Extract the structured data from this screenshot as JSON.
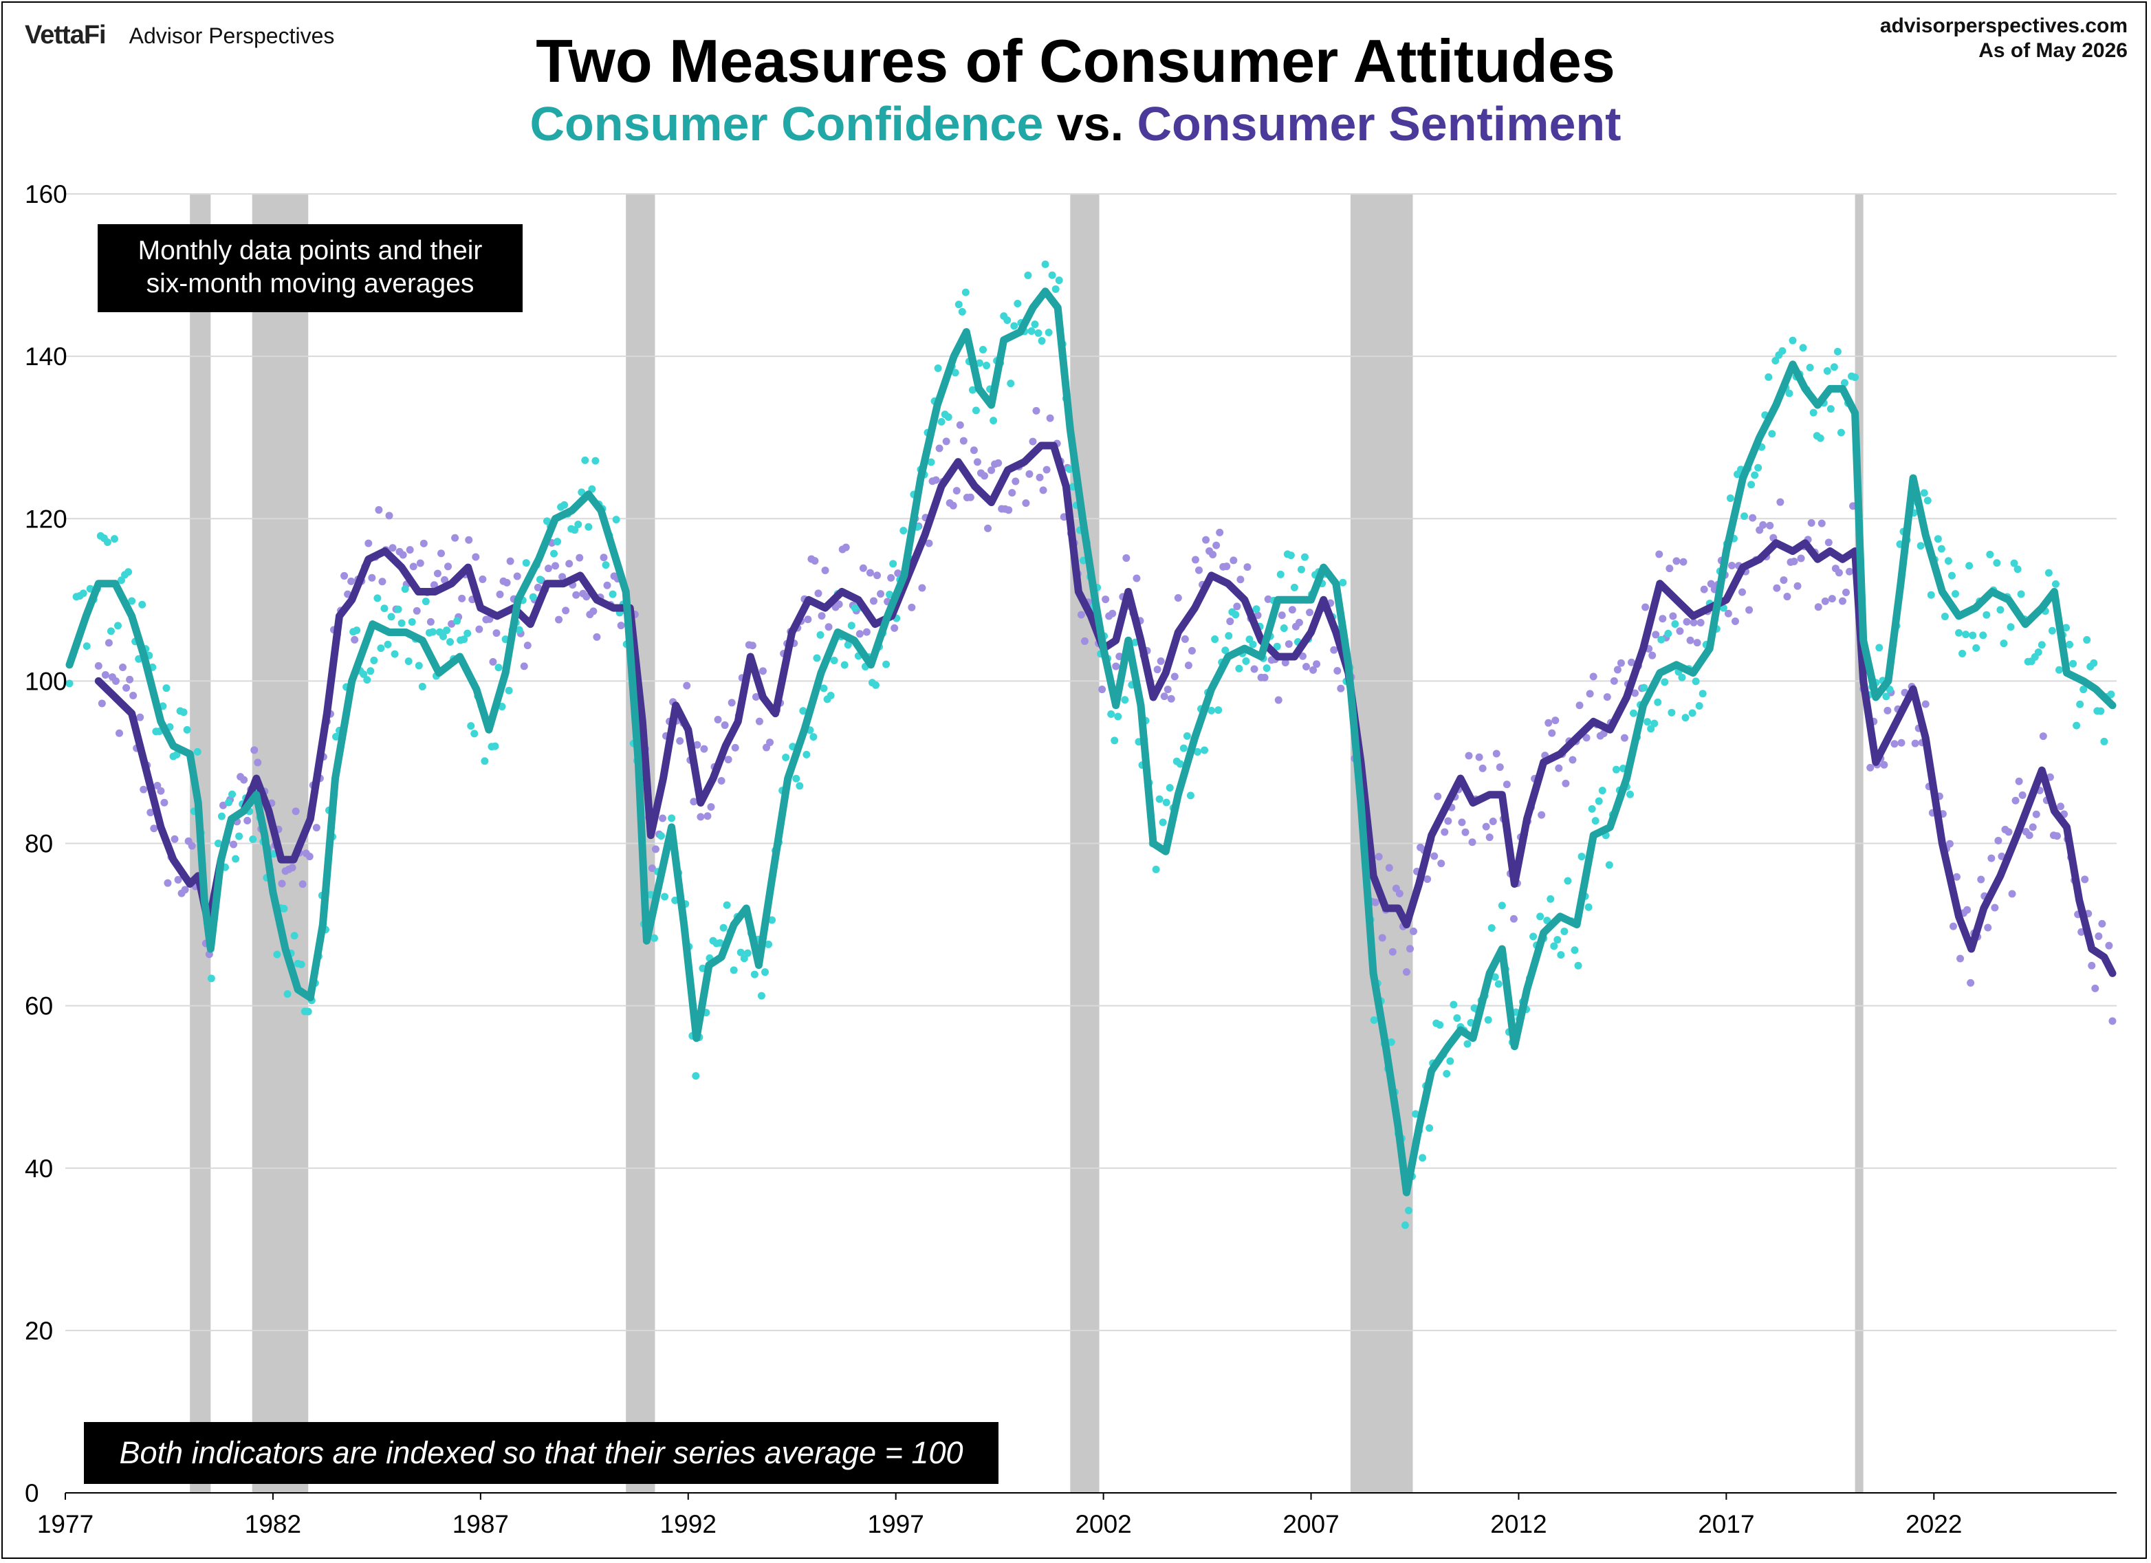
{
  "header": {
    "brand_mark": "VettaFi",
    "brand_name": "Advisor Perspectives",
    "source_url": "advisorperspectives.com",
    "as_of": "As of May 2026",
    "title": "Two Measures of Consumer Attitudes",
    "subtitle_a": "Consumer Confidence",
    "subtitle_vs": "vs.",
    "subtitle_b": "Consumer Sentiment"
  },
  "annotations": {
    "top_note_line1": "Monthly data points and their",
    "top_note_line2": "six-month moving averages",
    "bottom_note": "Both indicators are indexed so that their series average = 100"
  },
  "colors": {
    "confidence": "#1fa3a3",
    "confidence_dots": "#3dd6d6",
    "sentiment": "#45338f",
    "sentiment_dots": "#a08ee0",
    "recession": "#c8c8c8",
    "grid": "#d9d9d9"
  },
  "chart_data": {
    "type": "line",
    "xlabel": "",
    "ylabel": "",
    "ylim": [
      0,
      160
    ],
    "xlim": [
      1977.0,
      2026.4
    ],
    "yticks": [
      0,
      20,
      40,
      60,
      80,
      100,
      120,
      140,
      160
    ],
    "xticks": [
      1977,
      1982,
      1987,
      1992,
      1997,
      2002,
      2007,
      2012,
      2017,
      2022
    ],
    "grid": true,
    "recessions": [
      [
        1980.0,
        1980.5
      ],
      [
        1981.5,
        1982.85
      ],
      [
        1990.5,
        1991.2
      ],
      [
        2001.2,
        2001.9
      ],
      [
        2007.95,
        2009.45
      ],
      [
        2020.1,
        2020.3
      ]
    ],
    "series": [
      {
        "name": "Consumer Confidence",
        "style": "moving-average",
        "points": [
          [
            1977.1,
            102
          ],
          [
            1977.5,
            108
          ],
          [
            1977.8,
            112
          ],
          [
            1978.2,
            112
          ],
          [
            1978.6,
            108
          ],
          [
            1978.9,
            103
          ],
          [
            1979.3,
            95
          ],
          [
            1979.6,
            92
          ],
          [
            1980.0,
            91
          ],
          [
            1980.2,
            85
          ],
          [
            1980.35,
            73
          ],
          [
            1980.5,
            67
          ],
          [
            1980.75,
            78
          ],
          [
            1981.0,
            83
          ],
          [
            1981.3,
            84
          ],
          [
            1981.6,
            86
          ],
          [
            1981.8,
            81
          ],
          [
            1982.0,
            74
          ],
          [
            1982.3,
            67
          ],
          [
            1982.6,
            62
          ],
          [
            1982.9,
            61
          ],
          [
            1983.2,
            70
          ],
          [
            1983.5,
            88
          ],
          [
            1983.9,
            100
          ],
          [
            1984.4,
            107
          ],
          [
            1984.8,
            106
          ],
          [
            1985.2,
            106
          ],
          [
            1985.6,
            105
          ],
          [
            1986.0,
            101
          ],
          [
            1986.5,
            103
          ],
          [
            1986.9,
            99
          ],
          [
            1987.2,
            94
          ],
          [
            1987.6,
            101
          ],
          [
            1987.9,
            110
          ],
          [
            1988.4,
            115
          ],
          [
            1988.8,
            120
          ],
          [
            1989.2,
            121
          ],
          [
            1989.6,
            123
          ],
          [
            1989.9,
            121
          ],
          [
            1990.2,
            116
          ],
          [
            1990.5,
            111
          ],
          [
            1990.8,
            90
          ],
          [
            1991.0,
            68
          ],
          [
            1991.3,
            75
          ],
          [
            1991.6,
            82
          ],
          [
            1991.9,
            70
          ],
          [
            1992.2,
            56
          ],
          [
            1992.5,
            65
          ],
          [
            1992.8,
            66
          ],
          [
            1993.1,
            70
          ],
          [
            1993.4,
            72
          ],
          [
            1993.7,
            65
          ],
          [
            1994.0,
            75
          ],
          [
            1994.4,
            88
          ],
          [
            1994.8,
            94
          ],
          [
            1995.2,
            101
          ],
          [
            1995.6,
            106
          ],
          [
            1996.0,
            105
          ],
          [
            1996.4,
            102
          ],
          [
            1996.8,
            108
          ],
          [
            1997.2,
            113
          ],
          [
            1997.6,
            125
          ],
          [
            1998.0,
            134
          ],
          [
            1998.4,
            140
          ],
          [
            1998.7,
            143
          ],
          [
            1999.0,
            136
          ],
          [
            1999.3,
            134
          ],
          [
            1999.6,
            142
          ],
          [
            2000.0,
            143
          ],
          [
            2000.3,
            146
          ],
          [
            2000.6,
            148
          ],
          [
            2000.9,
            146
          ],
          [
            2001.2,
            131
          ],
          [
            2001.5,
            120
          ],
          [
            2001.8,
            110
          ],
          [
            2002.0,
            104
          ],
          [
            2002.3,
            97
          ],
          [
            2002.6,
            105
          ],
          [
            2002.9,
            97
          ],
          [
            2003.2,
            80
          ],
          [
            2003.5,
            79
          ],
          [
            2003.8,
            86
          ],
          [
            2004.2,
            93
          ],
          [
            2004.6,
            99
          ],
          [
            2005.0,
            103
          ],
          [
            2005.4,
            104
          ],
          [
            2005.8,
            103
          ],
          [
            2006.2,
            110
          ],
          [
            2006.6,
            110
          ],
          [
            2007.0,
            110
          ],
          [
            2007.3,
            114
          ],
          [
            2007.6,
            112
          ],
          [
            2007.9,
            102
          ],
          [
            2008.2,
            85
          ],
          [
            2008.5,
            64
          ],
          [
            2008.8,
            55
          ],
          [
            2009.1,
            45
          ],
          [
            2009.3,
            37
          ],
          [
            2009.6,
            45
          ],
          [
            2009.9,
            52
          ],
          [
            2010.3,
            55
          ],
          [
            2010.6,
            57
          ],
          [
            2010.9,
            56
          ],
          [
            2011.3,
            64
          ],
          [
            2011.6,
            67
          ],
          [
            2011.9,
            55
          ],
          [
            2012.2,
            62
          ],
          [
            2012.6,
            69
          ],
          [
            2013.0,
            71
          ],
          [
            2013.4,
            70
          ],
          [
            2013.8,
            81
          ],
          [
            2014.2,
            82
          ],
          [
            2014.6,
            88
          ],
          [
            2015.0,
            97
          ],
          [
            2015.4,
            101
          ],
          [
            2015.8,
            102
          ],
          [
            2016.2,
            101
          ],
          [
            2016.6,
            104
          ],
          [
            2017.0,
            116
          ],
          [
            2017.4,
            125
          ],
          [
            2017.8,
            130
          ],
          [
            2018.2,
            134
          ],
          [
            2018.6,
            139
          ],
          [
            2018.9,
            136
          ],
          [
            2019.2,
            134
          ],
          [
            2019.5,
            136
          ],
          [
            2019.8,
            136
          ],
          [
            2020.1,
            133
          ],
          [
            2020.3,
            105
          ],
          [
            2020.6,
            98
          ],
          [
            2020.9,
            100
          ],
          [
            2021.2,
            112
          ],
          [
            2021.5,
            125
          ],
          [
            2021.8,
            118
          ],
          [
            2022.2,
            111
          ],
          [
            2022.6,
            108
          ],
          [
            2023.0,
            109
          ],
          [
            2023.4,
            111
          ],
          [
            2023.8,
            110
          ],
          [
            2024.2,
            107
          ],
          [
            2024.6,
            109
          ],
          [
            2024.9,
            111
          ],
          [
            2025.2,
            101
          ],
          [
            2025.6,
            100
          ],
          [
            2025.9,
            99
          ],
          [
            2026.3,
            97
          ]
        ]
      },
      {
        "name": "Consumer Sentiment",
        "style": "moving-average",
        "points": [
          [
            1977.8,
            100
          ],
          [
            1978.2,
            98
          ],
          [
            1978.6,
            96
          ],
          [
            1978.9,
            90
          ],
          [
            1979.3,
            82
          ],
          [
            1979.6,
            78
          ],
          [
            1980.0,
            75
          ],
          [
            1980.2,
            76
          ],
          [
            1980.45,
            70
          ],
          [
            1980.75,
            78
          ],
          [
            1981.0,
            83
          ],
          [
            1981.3,
            84
          ],
          [
            1981.6,
            88
          ],
          [
            1981.9,
            84
          ],
          [
            1982.2,
            78
          ],
          [
            1982.5,
            78
          ],
          [
            1982.9,
            83
          ],
          [
            1983.3,
            96
          ],
          [
            1983.6,
            108
          ],
          [
            1983.9,
            110
          ],
          [
            1984.3,
            115
          ],
          [
            1984.7,
            116
          ],
          [
            1985.1,
            114
          ],
          [
            1985.5,
            111
          ],
          [
            1985.9,
            111
          ],
          [
            1986.3,
            112
          ],
          [
            1986.7,
            114
          ],
          [
            1987.0,
            109
          ],
          [
            1987.4,
            108
          ],
          [
            1987.8,
            109
          ],
          [
            1988.2,
            107
          ],
          [
            1988.6,
            112
          ],
          [
            1989.0,
            112
          ],
          [
            1989.4,
            113
          ],
          [
            1989.8,
            110
          ],
          [
            1990.2,
            109
          ],
          [
            1990.6,
            109
          ],
          [
            1990.9,
            95
          ],
          [
            1991.1,
            81
          ],
          [
            1991.4,
            88
          ],
          [
            1991.7,
            97
          ],
          [
            1992.0,
            94
          ],
          [
            1992.3,
            85
          ],
          [
            1992.6,
            88
          ],
          [
            1992.9,
            92
          ],
          [
            1993.2,
            95
          ],
          [
            1993.5,
            103
          ],
          [
            1993.8,
            98
          ],
          [
            1994.1,
            96
          ],
          [
            1994.5,
            106
          ],
          [
            1994.9,
            110
          ],
          [
            1995.3,
            109
          ],
          [
            1995.7,
            111
          ],
          [
            1996.1,
            110
          ],
          [
            1996.5,
            107
          ],
          [
            1996.9,
            108
          ],
          [
            1997.3,
            113
          ],
          [
            1997.7,
            118
          ],
          [
            1998.1,
            124
          ],
          [
            1998.5,
            127
          ],
          [
            1998.9,
            124
          ],
          [
            1999.3,
            122
          ],
          [
            1999.7,
            126
          ],
          [
            2000.1,
            127
          ],
          [
            2000.5,
            129
          ],
          [
            2000.8,
            129
          ],
          [
            2001.1,
            124
          ],
          [
            2001.4,
            111
          ],
          [
            2001.7,
            108
          ],
          [
            2002.0,
            104
          ],
          [
            2002.3,
            105
          ],
          [
            2002.6,
            111
          ],
          [
            2002.9,
            105
          ],
          [
            2003.2,
            98
          ],
          [
            2003.5,
            101
          ],
          [
            2003.8,
            106
          ],
          [
            2004.2,
            109
          ],
          [
            2004.6,
            113
          ],
          [
            2005.0,
            112
          ],
          [
            2005.4,
            110
          ],
          [
            2005.8,
            105
          ],
          [
            2006.2,
            103
          ],
          [
            2006.6,
            103
          ],
          [
            2007.0,
            106
          ],
          [
            2007.3,
            110
          ],
          [
            2007.6,
            106
          ],
          [
            2007.9,
            101
          ],
          [
            2008.2,
            90
          ],
          [
            2008.5,
            76
          ],
          [
            2008.8,
            72
          ],
          [
            2009.1,
            72
          ],
          [
            2009.3,
            70
          ],
          [
            2009.6,
            75
          ],
          [
            2009.9,
            81
          ],
          [
            2010.3,
            85
          ],
          [
            2010.6,
            88
          ],
          [
            2010.9,
            85
          ],
          [
            2011.3,
            86
          ],
          [
            2011.6,
            86
          ],
          [
            2011.9,
            75
          ],
          [
            2012.2,
            83
          ],
          [
            2012.6,
            90
          ],
          [
            2013.0,
            91
          ],
          [
            2013.4,
            93
          ],
          [
            2013.8,
            95
          ],
          [
            2014.2,
            94
          ],
          [
            2014.6,
            98
          ],
          [
            2015.0,
            104
          ],
          [
            2015.4,
            112
          ],
          [
            2015.8,
            110
          ],
          [
            2016.2,
            108
          ],
          [
            2016.6,
            109
          ],
          [
            2017.0,
            110
          ],
          [
            2017.4,
            114
          ],
          [
            2017.8,
            115
          ],
          [
            2018.2,
            117
          ],
          [
            2018.6,
            116
          ],
          [
            2018.9,
            117
          ],
          [
            2019.2,
            115
          ],
          [
            2019.5,
            116
          ],
          [
            2019.8,
            115
          ],
          [
            2020.1,
            116
          ],
          [
            2020.3,
            100
          ],
          [
            2020.6,
            90
          ],
          [
            2020.9,
            93
          ],
          [
            2021.2,
            96
          ],
          [
            2021.5,
            99
          ],
          [
            2021.8,
            93
          ],
          [
            2022.2,
            80
          ],
          [
            2022.6,
            71
          ],
          [
            2022.9,
            67
          ],
          [
            2023.2,
            72
          ],
          [
            2023.6,
            76
          ],
          [
            2024.0,
            81
          ],
          [
            2024.3,
            85
          ],
          [
            2024.6,
            89
          ],
          [
            2024.9,
            84
          ],
          [
            2025.2,
            82
          ],
          [
            2025.5,
            73
          ],
          [
            2025.8,
            67
          ],
          [
            2026.1,
            66
          ],
          [
            2026.3,
            64
          ]
        ]
      }
    ]
  }
}
